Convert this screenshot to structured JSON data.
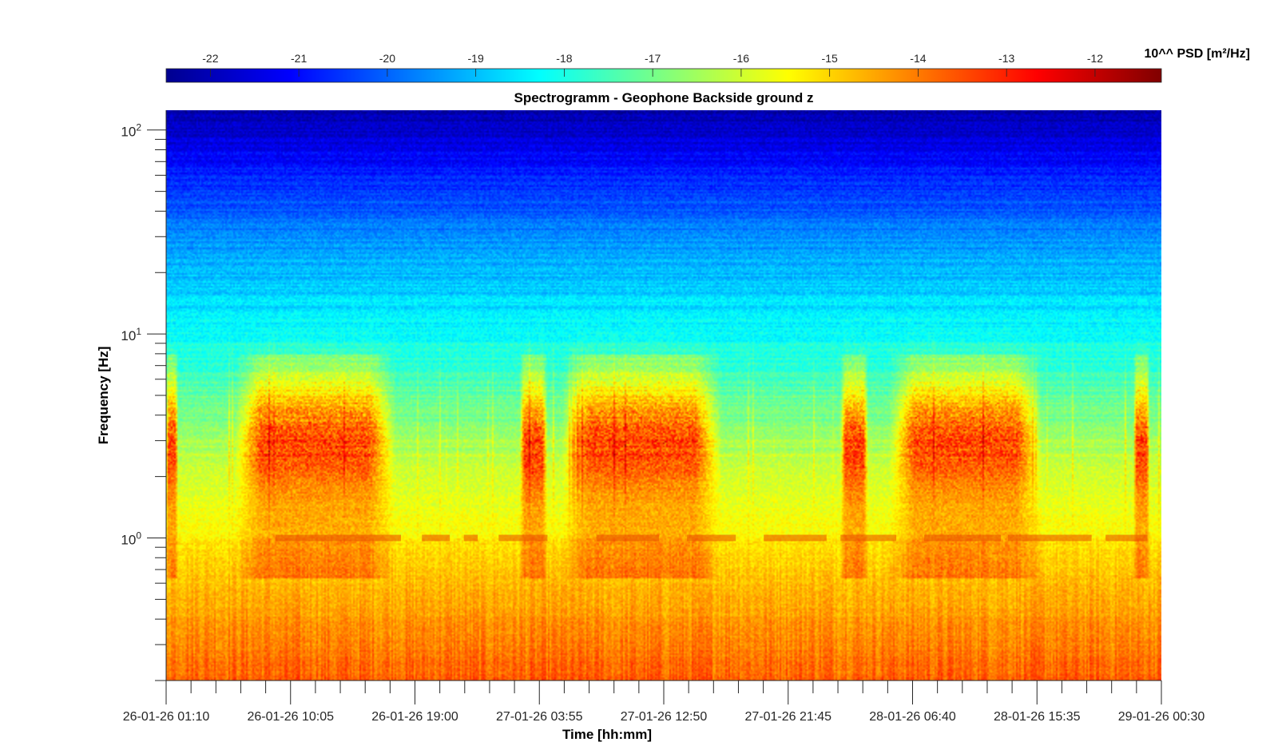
{
  "chart_data": {
    "type": "heatmap",
    "title": "Spectrogramm - Geophone Backside ground z",
    "xlabel": "Time [hh:mm]",
    "ylabel": "Frequency [Hz]",
    "y_scale": "log",
    "y_range_hz": [
      0.2,
      125
    ],
    "x_tick_labels": [
      "26-01-26 01:10",
      "26-01-26 10:05",
      "26-01-26 19:00",
      "27-01-26 03:55",
      "27-01-26 12:50",
      "27-01-26 21:45",
      "28-01-26 06:40",
      "28-01-26 15:35",
      "29-01-26 00:30"
    ],
    "y_ticks": [
      {
        "base": "10",
        "exp": "2",
        "value": 100
      },
      {
        "base": "10",
        "exp": "1",
        "value": 10
      },
      {
        "base": "10",
        "exp": "0",
        "value": 1
      }
    ],
    "colorbar": {
      "label": "10^^ PSD [m²/Hz]",
      "ticks": [
        -22,
        -21,
        -20,
        -19,
        -18,
        -17,
        -16,
        -15,
        -14,
        -13,
        -12
      ],
      "range": [
        -22.5,
        -11.25
      ],
      "colormap": "jet",
      "location": "top"
    },
    "activity_bursts": [
      {
        "start": "26-01-26 01:10",
        "end": "26-01-26 02:00",
        "center_hz": 3
      },
      {
        "start": "26-01-26 06:00",
        "end": "26-01-26 17:40",
        "center_hz": 3.2
      },
      {
        "start": "27-01-26 02:30",
        "end": "27-01-26 04:30",
        "center_hz": 3
      },
      {
        "start": "27-01-26 05:30",
        "end": "27-01-26 17:00",
        "center_hz": 3.2
      },
      {
        "start": "28-01-26 01:30",
        "end": "28-01-26 03:30",
        "center_hz": 3
      },
      {
        "start": "28-01-26 05:00",
        "end": "28-01-26 16:00",
        "center_hz": 3.2
      },
      {
        "start": "28-01-26 22:30",
        "end": "28-01-26 23:40",
        "center_hz": 3
      }
    ],
    "one_hz_line_segments": [
      [
        "26-01-26 09:00",
        "26-01-26 18:00"
      ],
      [
        "26-01-26 19:30",
        "26-01-26 21:30"
      ],
      [
        "26-01-26 22:30",
        "26-01-26 23:30"
      ],
      [
        "27-01-26 01:00",
        "27-01-26 04:30"
      ],
      [
        "27-01-26 08:00",
        "27-01-26 12:30"
      ],
      [
        "27-01-26 14:30",
        "27-01-26 18:00"
      ],
      [
        "27-01-26 20:00",
        "28-01-26 00:30"
      ],
      [
        "28-01-26 01:30",
        "28-01-26 05:30"
      ],
      [
        "28-01-26 07:30",
        "28-01-26 13:00"
      ],
      [
        "28-01-26 13:30",
        "28-01-26 19:30"
      ],
      [
        "28-01-26 20:30",
        "28-01-26 23:30"
      ]
    ],
    "grid": false
  }
}
